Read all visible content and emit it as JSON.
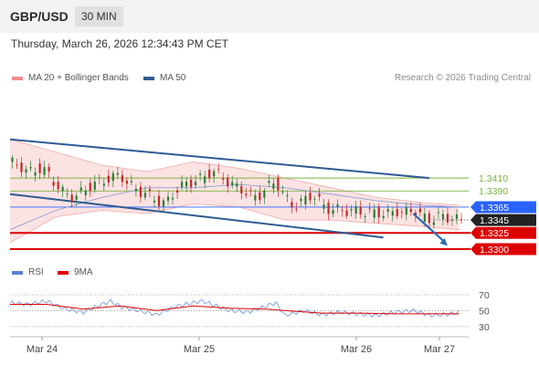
{
  "header": {
    "pair": "GBP/USD",
    "timeframe": "30 MIN"
  },
  "timestamp": "Thursday, March 26, 2026 12:34:43 PM CET",
  "copyright": "Research © 2026 Trading Central",
  "legend_price": [
    {
      "name": "MA 20 + Bollinger Bands",
      "color": "#f08a8a"
    },
    {
      "name": "MA 50",
      "color": "#2e5a94"
    }
  ],
  "legend_rsi": [
    {
      "name": "RSI",
      "color": "#5b7fd6"
    },
    {
      "name": "9MA",
      "color": "#dd0000"
    }
  ],
  "colors": {
    "green_level": "#7cb342",
    "red_level": "#dd0000",
    "blue_tag": "#2962ff",
    "dark_tag": "#222222",
    "trend": "#2e5a94",
    "candle_up": "#2e7d32",
    "candle_down": "#c62828"
  },
  "chart_data": [
    {
      "type": "line",
      "y_range": [
        1.3283,
        1.3519
      ],
      "x_labels": [
        "Mar 24",
        "Mar 25",
        "Mar 26",
        "Mar 27"
      ],
      "levels": [
        {
          "value": 1.341,
          "label": "1.3410",
          "style": "green"
        },
        {
          "value": 1.339,
          "label": "1.3390",
          "style": "green"
        },
        {
          "value": 1.3365,
          "label": "1.3365",
          "style": "blue"
        },
        {
          "value": 1.3345,
          "label": "1.3345",
          "style": "dark"
        },
        {
          "value": 1.3325,
          "label": "1.3325",
          "style": "red"
        },
        {
          "value": 1.33,
          "label": "1.3300",
          "style": "red"
        }
      ],
      "price_path": [
        [
          0,
          1.3435
        ],
        [
          4,
          1.343
        ],
        [
          8,
          1.3418
        ],
        [
          12,
          1.3425
        ],
        [
          16,
          1.342
        ],
        [
          20,
          1.34
        ],
        [
          24,
          1.3385
        ],
        [
          28,
          1.338
        ],
        [
          32,
          1.339
        ],
        [
          36,
          1.34
        ],
        [
          40,
          1.3405
        ],
        [
          44,
          1.341
        ],
        [
          48,
          1.3415
        ],
        [
          52,
          1.34
        ],
        [
          56,
          1.339
        ],
        [
          60,
          1.3385
        ],
        [
          64,
          1.3375
        ],
        [
          68,
          1.337
        ],
        [
          72,
          1.339
        ],
        [
          76,
          1.34
        ],
        [
          80,
          1.3405
        ],
        [
          84,
          1.341
        ],
        [
          88,
          1.342
        ],
        [
          92,
          1.3415
        ],
        [
          96,
          1.34
        ],
        [
          100,
          1.3395
        ],
        [
          104,
          1.3385
        ],
        [
          108,
          1.338
        ],
        [
          112,
          1.3395
        ],
        [
          116,
          1.3405
        ],
        [
          120,
          1.338
        ],
        [
          124,
          1.3365
        ],
        [
          128,
          1.3375
        ],
        [
          132,
          1.3385
        ],
        [
          136,
          1.337
        ],
        [
          140,
          1.336
        ],
        [
          144,
          1.3362
        ],
        [
          148,
          1.3358
        ],
        [
          152,
          1.336
        ],
        [
          156,
          1.3355
        ],
        [
          160,
          1.3358
        ],
        [
          164,
          1.3352
        ],
        [
          168,
          1.336
        ],
        [
          172,
          1.3355
        ],
        [
          176,
          1.3362
        ],
        [
          180,
          1.335
        ],
        [
          184,
          1.3345
        ],
        [
          188,
          1.3352
        ],
        [
          192,
          1.3348
        ],
        [
          196,
          1.3345
        ]
      ],
      "ma50_path": [
        [
          0,
          1.333
        ],
        [
          20,
          1.336
        ],
        [
          40,
          1.338
        ],
        [
          60,
          1.3395
        ],
        [
          80,
          1.3395
        ],
        [
          100,
          1.34
        ],
        [
          120,
          1.3395
        ],
        [
          140,
          1.3385
        ],
        [
          160,
          1.3375
        ],
        [
          180,
          1.3368
        ],
        [
          196,
          1.3365
        ]
      ],
      "bollinger_upper": [
        [
          0,
          1.347
        ],
        [
          20,
          1.345
        ],
        [
          40,
          1.343
        ],
        [
          60,
          1.342
        ],
        [
          80,
          1.3435
        ],
        [
          100,
          1.3425
        ],
        [
          120,
          1.341
        ],
        [
          140,
          1.3395
        ],
        [
          160,
          1.338
        ],
        [
          180,
          1.3372
        ],
        [
          196,
          1.3368
        ]
      ],
      "bollinger_lower": [
        [
          0,
          1.331
        ],
        [
          20,
          1.335
        ],
        [
          40,
          1.336
        ],
        [
          60,
          1.3355
        ],
        [
          80,
          1.337
        ],
        [
          100,
          1.3365
        ],
        [
          120,
          1.3345
        ],
        [
          140,
          1.3345
        ],
        [
          160,
          1.334
        ],
        [
          180,
          1.3335
        ],
        [
          196,
          1.333
        ]
      ],
      "channel_upper": [
        [
          0,
          1.347
        ],
        [
          183,
          1.341
        ]
      ],
      "channel_lower": [
        [
          0,
          1.3385
        ],
        [
          163,
          1.3318
        ]
      ],
      "forecast_arrow": [
        [
          176,
          1.3355
        ],
        [
          191,
          1.3305
        ]
      ]
    },
    {
      "type": "line",
      "title": "RSI",
      "y_range": [
        23,
        78
      ],
      "y_ticks": [
        70,
        50,
        30
      ],
      "rsi": [
        [
          0,
          60
        ],
        [
          8,
          58
        ],
        [
          16,
          62
        ],
        [
          24,
          52
        ],
        [
          32,
          48
        ],
        [
          40,
          58
        ],
        [
          44,
          62
        ],
        [
          48,
          55
        ],
        [
          56,
          50
        ],
        [
          64,
          45
        ],
        [
          72,
          55
        ],
        [
          80,
          60
        ],
        [
          84,
          62
        ],
        [
          88,
          58
        ],
        [
          96,
          50
        ],
        [
          104,
          48
        ],
        [
          112,
          56
        ],
        [
          116,
          60
        ],
        [
          120,
          44
        ],
        [
          128,
          50
        ],
        [
          136,
          45
        ],
        [
          144,
          48
        ],
        [
          152,
          46
        ],
        [
          160,
          44
        ],
        [
          168,
          48
        ],
        [
          176,
          50
        ],
        [
          184,
          44
        ],
        [
          192,
          46
        ],
        [
          196,
          48
        ]
      ],
      "rsi_ma": [
        [
          0,
          58
        ],
        [
          16,
          58
        ],
        [
          32,
          52
        ],
        [
          48,
          56
        ],
        [
          64,
          50
        ],
        [
          80,
          56
        ],
        [
          96,
          53
        ],
        [
          112,
          52
        ],
        [
          120,
          50
        ],
        [
          136,
          47
        ],
        [
          152,
          47
        ],
        [
          168,
          46
        ],
        [
          184,
          46
        ],
        [
          196,
          46
        ]
      ]
    }
  ]
}
